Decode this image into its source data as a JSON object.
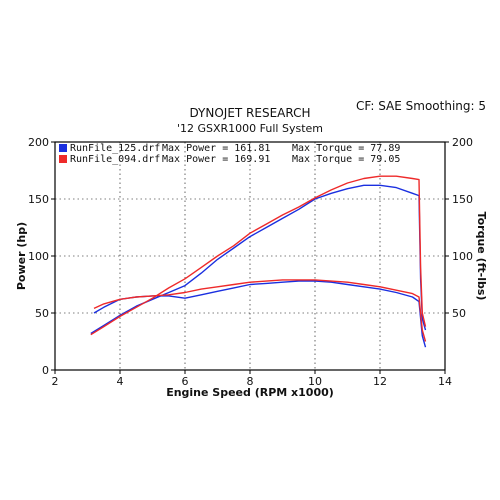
{
  "chart_data": {
    "type": "line",
    "title": "DYNOJET RESEARCH",
    "subtitle": "'12 GSXR1000 Full System",
    "info": "CF: SAE  Smoothing: 5",
    "xlabel": "Engine Speed (RPM x1000)",
    "ylabel": "Power (hp)",
    "ylabel_right": "Torque (ft-lbs)",
    "xlim": [
      2,
      14
    ],
    "ylim": [
      0,
      200
    ],
    "ylim_right": [
      0,
      200
    ],
    "xticks": [
      "2",
      "4",
      "6",
      "8",
      "10",
      "12",
      "14"
    ],
    "yticks": [
      "0",
      "50",
      "100",
      "150",
      "200"
    ],
    "yticks_right": [
      "50",
      "100",
      "150",
      "200"
    ],
    "grid": true,
    "legend_position": "top-left",
    "legend": [
      {
        "file": "RunFile_125.drf",
        "max_power_label": "Max Power = 161.81",
        "max_torque_label": "Max Torque = 77.89",
        "color": "#1a2fe0"
      },
      {
        "file": "RunFile_094.drf",
        "max_power_label": "Max Power = 169.91",
        "max_torque_label": "Max Torque = 79.05",
        "color": "#ee2a2a"
      }
    ],
    "series": [
      {
        "measure": "power",
        "run": 0,
        "color": "#1a2fe0",
        "x": [
          3.1,
          3.5,
          4.0,
          4.5,
          5.0,
          5.5,
          6.0,
          6.5,
          7.0,
          7.5,
          8.0,
          8.5,
          9.0,
          9.5,
          10.0,
          10.5,
          11.0,
          11.5,
          12.0,
          12.5,
          13.0,
          13.2,
          13.25,
          13.3,
          13.4
        ],
        "y": [
          32,
          39,
          48,
          56,
          62,
          68,
          74,
          85,
          97,
          107,
          117,
          125,
          133,
          141,
          150,
          155,
          159,
          162,
          162,
          160,
          155,
          153,
          80,
          45,
          35
        ]
      },
      {
        "measure": "torque",
        "run": 0,
        "color": "#1a2fe0",
        "x": [
          3.2,
          3.5,
          4.0,
          4.5,
          5.0,
          5.5,
          6.0,
          6.5,
          7.0,
          7.5,
          8.0,
          8.5,
          9.0,
          9.5,
          10.0,
          10.5,
          11.0,
          11.5,
          12.0,
          12.5,
          13.0,
          13.2,
          13.3,
          13.4
        ],
        "y": [
          50,
          55,
          62,
          64,
          65,
          65,
          63,
          66,
          69,
          72,
          75,
          76,
          77,
          78,
          78,
          77,
          75,
          73,
          71,
          68,
          64,
          60,
          30,
          20
        ]
      },
      {
        "measure": "power",
        "run": 1,
        "color": "#ee2a2a",
        "x": [
          3.1,
          3.5,
          4.0,
          4.5,
          5.0,
          5.5,
          6.0,
          6.5,
          7.0,
          7.5,
          8.0,
          8.5,
          9.0,
          9.5,
          10.0,
          10.5,
          11.0,
          11.5,
          12.0,
          12.5,
          13.0,
          13.2,
          13.25,
          13.3,
          13.4
        ],
        "y": [
          31,
          38,
          47,
          55,
          63,
          72,
          80,
          90,
          100,
          109,
          120,
          128,
          136,
          143,
          151,
          158,
          164,
          168,
          170,
          170,
          168,
          167,
          90,
          50,
          38
        ]
      },
      {
        "measure": "torque",
        "run": 1,
        "color": "#ee2a2a",
        "x": [
          3.2,
          3.5,
          4.0,
          4.5,
          5.0,
          5.5,
          6.0,
          6.5,
          7.0,
          7.5,
          8.0,
          8.5,
          9.0,
          9.5,
          10.0,
          10.5,
          11.0,
          11.5,
          12.0,
          12.5,
          13.0,
          13.2,
          13.3,
          13.4
        ],
        "y": [
          54,
          58,
          62,
          64,
          65,
          66,
          68,
          71,
          73,
          75,
          77,
          78,
          79,
          79,
          79,
          78,
          77,
          75,
          73,
          70,
          67,
          64,
          35,
          25
        ]
      }
    ]
  }
}
